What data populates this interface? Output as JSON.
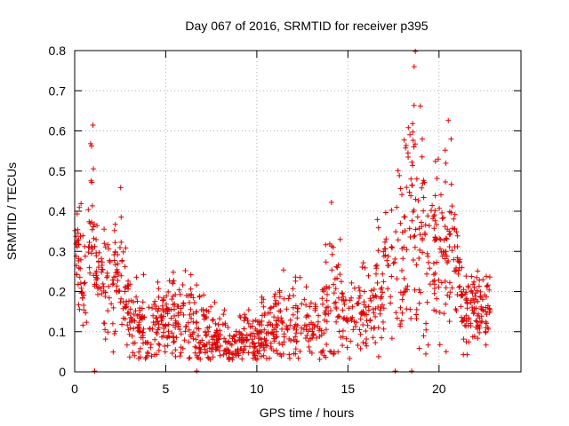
{
  "chart_data": {
    "type": "scatter",
    "title": "Day 067 of 2016, SRMTID for receiver p395",
    "xlabel": "GPS time / hours",
    "ylabel": "SRMTID / TECUs",
    "xlim": [
      0,
      24.5
    ],
    "ylim": [
      0,
      0.8
    ],
    "xticks": [
      0,
      5,
      10,
      15,
      20
    ],
    "xtick_labels": [
      "0",
      "5",
      "10",
      "15",
      "20"
    ],
    "yticks": [
      0,
      0.1,
      0.2,
      0.3,
      0.4,
      0.5,
      0.6,
      0.7,
      0.8
    ],
    "ytick_labels": [
      "0",
      "0.1",
      "0.2",
      "0.3",
      "0.4",
      "0.5",
      "0.6",
      "0.7",
      "0.8"
    ],
    "grid": true,
    "marker": "plus",
    "color": "#e00000",
    "profile_hours": [
      0,
      0.3,
      0.7,
      1.0,
      1.2,
      1.6,
      2.0,
      2.6,
      3.0,
      4.0,
      5.5,
      6.5,
      7.5,
      8.5,
      9.5,
      10.5,
      11.5,
      12.5,
      13.5,
      14.0,
      15.0,
      16.0,
      17.0,
      18.0,
      18.6,
      19.2,
      20.0,
      20.7,
      21.2,
      22.0,
      22.8
    ],
    "profile_median": [
      0.37,
      0.27,
      0.22,
      0.4,
      0.26,
      0.2,
      0.23,
      0.25,
      0.13,
      0.11,
      0.14,
      0.12,
      0.09,
      0.07,
      0.08,
      0.1,
      0.12,
      0.11,
      0.1,
      0.22,
      0.13,
      0.14,
      0.22,
      0.3,
      0.45,
      0.3,
      0.3,
      0.35,
      0.17,
      0.16,
      0.15
    ],
    "profile_spread": [
      0.05,
      0.06,
      0.07,
      0.14,
      0.08,
      0.07,
      0.08,
      0.08,
      0.05,
      0.05,
      0.06,
      0.06,
      0.04,
      0.03,
      0.04,
      0.04,
      0.05,
      0.05,
      0.04,
      0.1,
      0.05,
      0.05,
      0.08,
      0.1,
      0.18,
      0.12,
      0.1,
      0.12,
      0.05,
      0.05,
      0.04
    ],
    "max_value_hour": 18.7,
    "max_value": 0.8,
    "zero_values_hours": [
      1.1,
      6.7,
      17.6,
      18.5
    ],
    "points_per_hour": 60,
    "random_seed": 395
  }
}
